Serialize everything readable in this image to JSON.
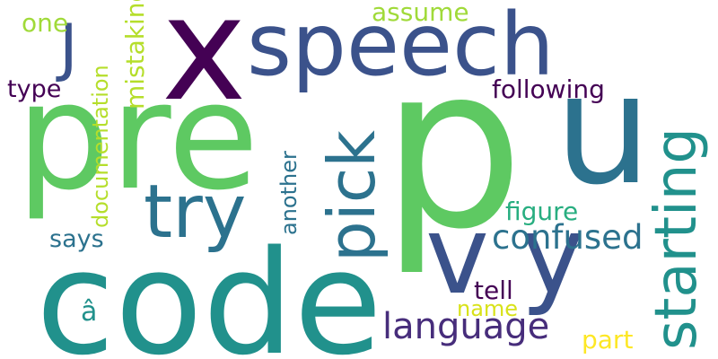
{
  "words": [
    {
      "key": "p",
      "text": "p",
      "color": "#5ec962"
    },
    {
      "key": "u",
      "text": "u",
      "color": "#2c728e"
    },
    {
      "key": "code",
      "text": "code",
      "color": "#21918c"
    },
    {
      "key": "pre",
      "text": "pre",
      "color": "#5ec962"
    },
    {
      "key": "speech",
      "text": "speech",
      "color": "#3b528b"
    },
    {
      "key": "x",
      "text": "x",
      "color": "#440154"
    },
    {
      "key": "starting",
      "text": "starting",
      "color": "#21918c"
    },
    {
      "key": "v",
      "text": "v",
      "color": "#3b528b"
    },
    {
      "key": "y",
      "text": "y",
      "color": "#3b528b"
    },
    {
      "key": "try",
      "text": "try",
      "color": "#2c728e"
    },
    {
      "key": "pick",
      "text": "pick",
      "color": "#2c728e"
    },
    {
      "key": "j",
      "text": "J",
      "color": "#3b528b"
    },
    {
      "key": "language",
      "text": "language",
      "color": "#472d7b"
    },
    {
      "key": "confused",
      "text": "confused",
      "color": "#2c728e"
    },
    {
      "key": "following",
      "text": "following",
      "color": "#440154"
    },
    {
      "key": "documentation",
      "text": "documentation",
      "color": "#b5de2b"
    },
    {
      "key": "figure",
      "text": "figure",
      "color": "#28ae80"
    },
    {
      "key": "mistaking",
      "text": "mistaking",
      "color": "#b5de2b"
    },
    {
      "key": "another",
      "text": "another",
      "color": "#2c728e"
    },
    {
      "key": "assume",
      "text": "assume",
      "color": "#a0da39"
    },
    {
      "key": "one",
      "text": "one",
      "color": "#a0da39"
    },
    {
      "key": "type",
      "text": "type",
      "color": "#440154"
    },
    {
      "key": "says",
      "text": "says",
      "color": "#2c728e"
    },
    {
      "key": "tell",
      "text": "tell",
      "color": "#440154"
    },
    {
      "key": "name",
      "text": "name",
      "color": "#d8e219"
    },
    {
      "key": "part",
      "text": "part",
      "color": "#fde725"
    },
    {
      "key": "a-circ",
      "text": "â",
      "color": "#21918c"
    }
  ]
}
